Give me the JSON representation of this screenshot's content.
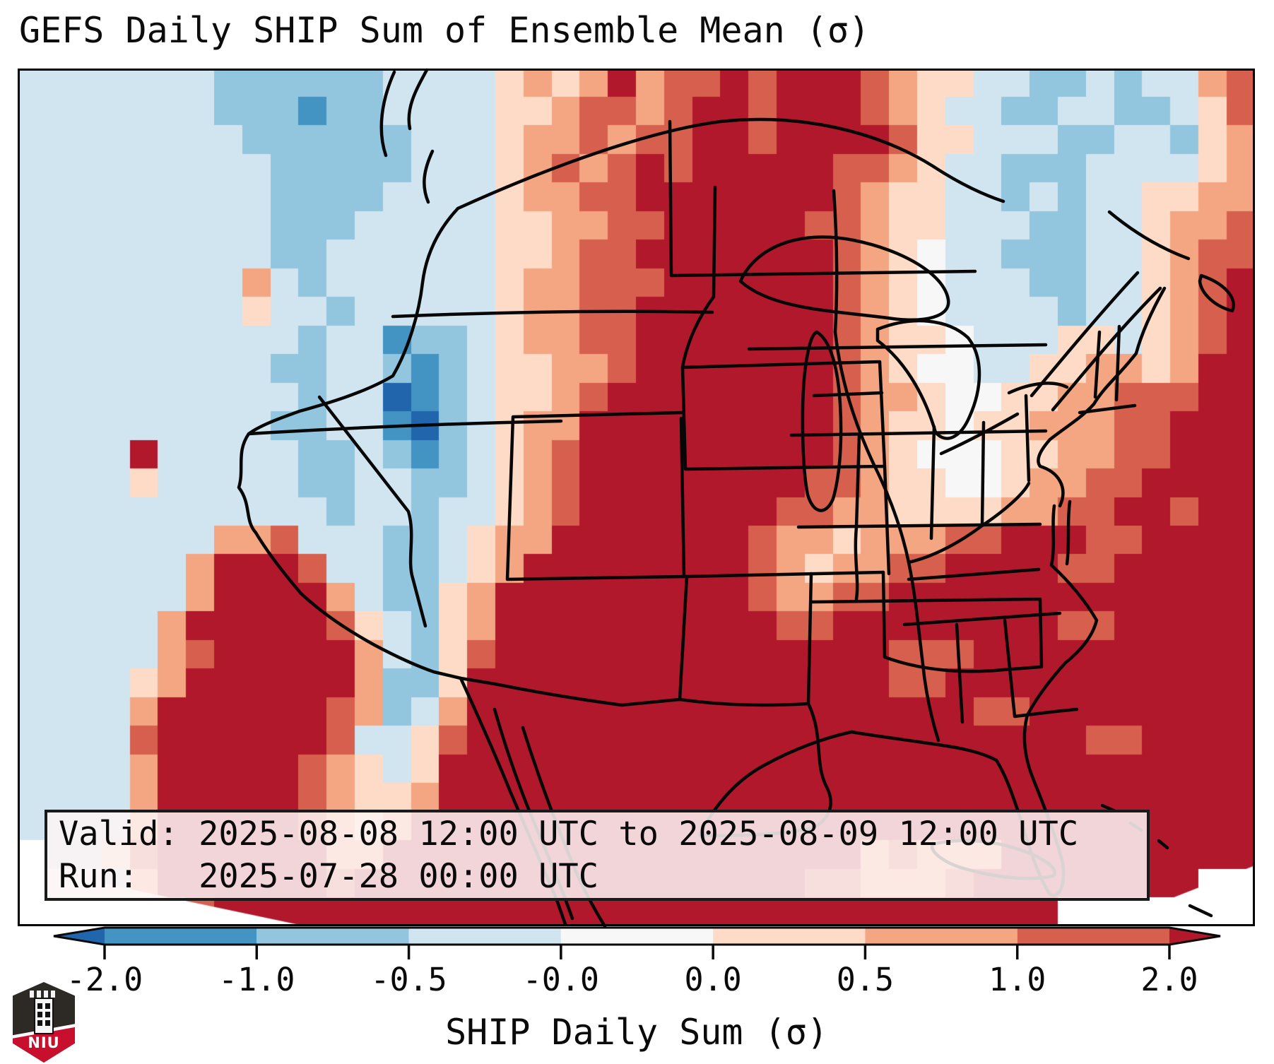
{
  "title": "GEFS Daily SHIP Sum of Ensemble Mean (σ)",
  "annotation": {
    "line1": "Valid: 2025-08-08 12:00 UTC to 2025-08-09 12:00 UTC",
    "line2": "Run:   2025-07-28 00:00 UTC"
  },
  "logo": {
    "text": "NIU",
    "shield_color": "#2d2a26",
    "band_color": "#c8102e"
  },
  "chart_data": {
    "type": "heatmap",
    "title": "GEFS Daily SHIP Sum of Ensemble Mean (σ)",
    "valid": "2025-08-08 12:00 UTC to 2025-08-09 12:00 UTC",
    "run": "2025-07-28 00:00 UTC",
    "colorbar": {
      "label": "SHIP Daily Sum (σ)",
      "orientation": "horizontal",
      "extend": "both",
      "tick_labels": [
        "-2.0",
        "-1.0",
        "-0.5",
        "-0.0",
        "0.0",
        "0.5",
        "1.0",
        "2.0"
      ],
      "levels": [
        -2.0,
        -1.0,
        -0.5,
        -0.0,
        0.0,
        0.5,
        1.0,
        2.0
      ],
      "segment_colors": [
        "#4393c3",
        "#92c5de",
        "#d1e5f0",
        "#f7f7f7",
        "#fddbc7",
        "#f4a582",
        "#d6604d"
      ],
      "under_color": "#2166ac",
      "over_color": "#b2182b"
    },
    "grid": {
      "cols": 44,
      "rows": 30,
      "no_data_index": 9,
      "palette": [
        "#2166ac",
        "#4393c3",
        "#92c5de",
        "#d1e5f0",
        "#f7f7f7",
        "#fddbc7",
        "#f4a582",
        "#d6604d",
        "#b2182b",
        "#ffffff"
      ],
      "cells": [
        "33333332222223333565686778788876553322323367",
        "33333332221223333556776788788876533223322357",
        "33333333222222333566767788788887553332233256",
        "33333333322222333567678788888776533222333356",
        "33333333322223333566778888888765533232335566",
        "33333333322233333556677888887765533322335667",
        "33333333322333333556778888888765433222335677",
        "33333333632333333566777888888765433322335678",
        "33333333533233333566778888888765433332335678",
        "33333333332331223566778888888765543335535678",
        "33333333322332123556678888888765443355665688",
        "33333333332330123556788888888766544556677788",
        "33333333322331023566888888888765545566677888",
        "33338333332232123567888888888765444556677888",
        "33335333332233223567888888887765544566778888",
        "33333333333233233567888888877665555667788788",
        "33333336673332235668888888766566677888778888",
        "33333368887332235688888888765667788887788888",
        "33333368888632256888888888766778888888888888",
        "33333688888753256888888888877888888887788888",
        "33333678888863257888888888888887778888888888",
        "33335688888862258888888888888887788888888888",
        "33336888888762368888888888888888887788888888",
        "33337888888733578888888888888888888888778888",
        "33336888887653588888888888888888888888888888",
        "33336888887655688888888888888888888888888888",
        "33336888887656888888888888888888888888888888",
        "93357888888668888888888888888867666888888888",
        "99936888888788888888888888887766678888888899",
        "99999378888888888888888888888888888889999999"
      ]
    }
  }
}
